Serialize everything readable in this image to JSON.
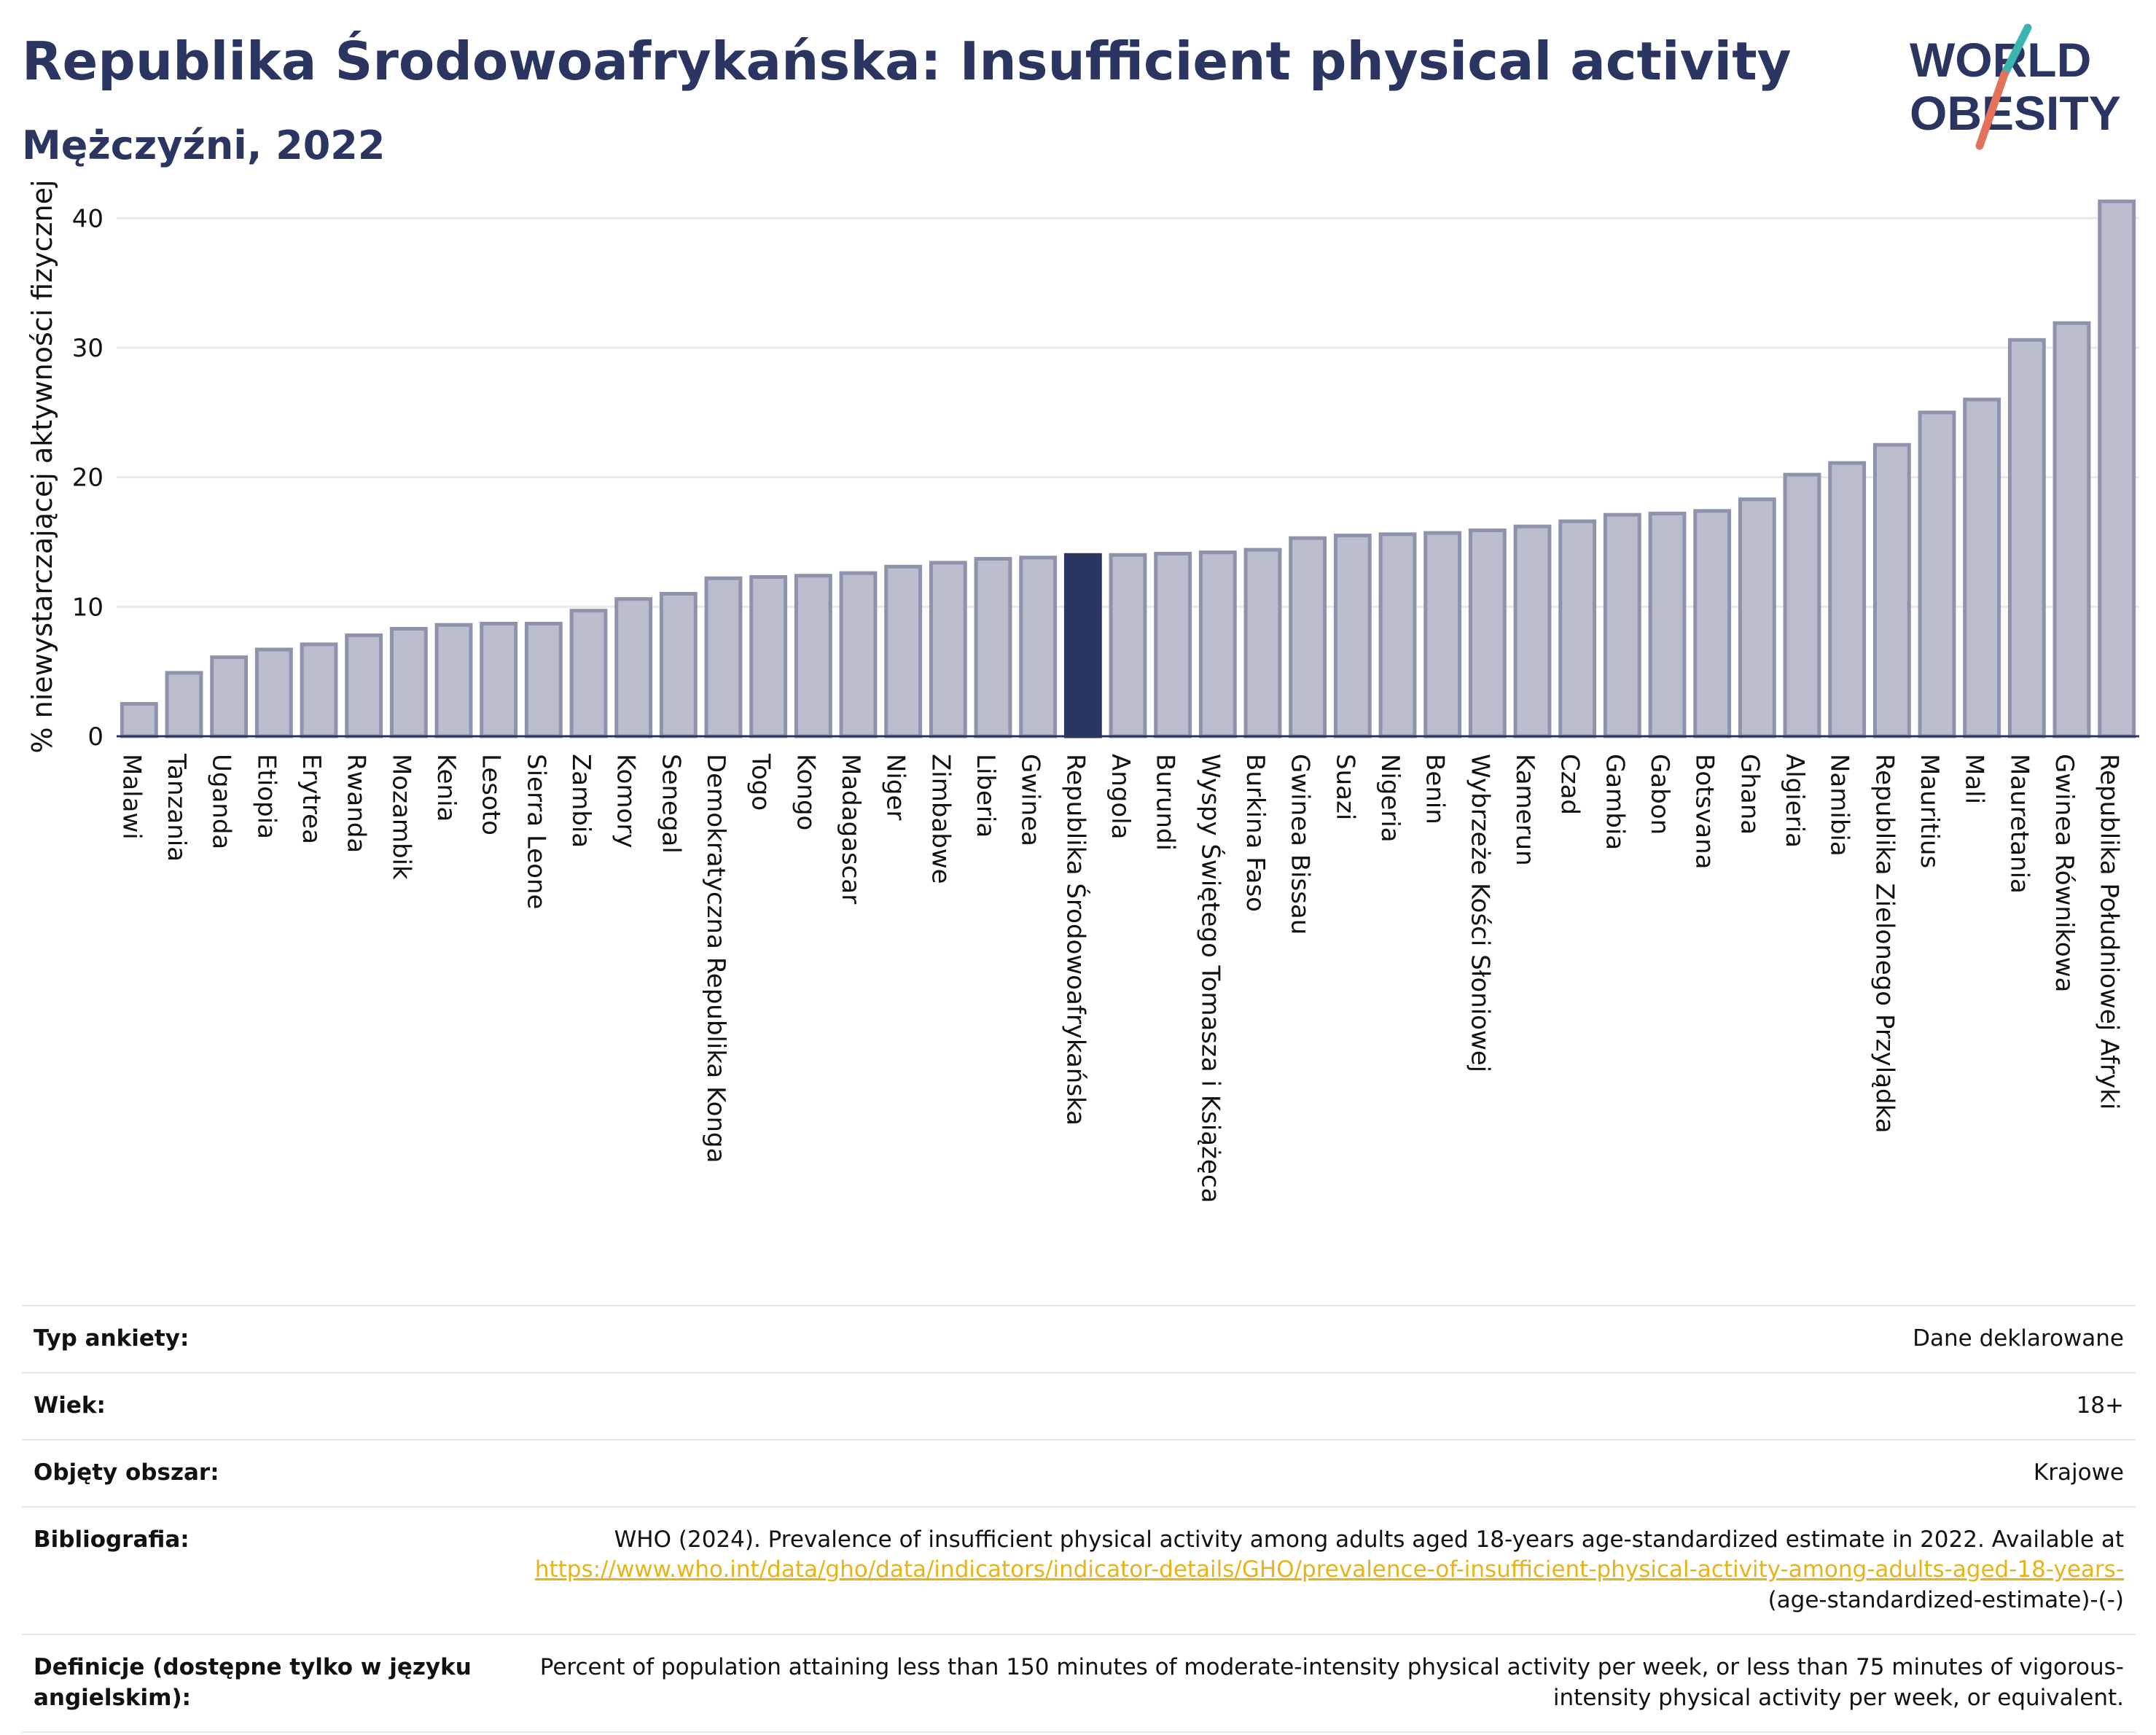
{
  "header": {
    "title": "Republika Środowoafrykańska: Insufficient physical activity",
    "subtitle": "Mężczyźni, 2022"
  },
  "logo": {
    "line1": "WORLD",
    "line2": "OBESITY",
    "accent_teal": "#3ab5b0",
    "accent_red": "#e2725b"
  },
  "colors": {
    "bar": "#b9bdcc",
    "bar_border": "#8d93ad",
    "highlight": "#2b3561",
    "grid": "#e8e9ed"
  },
  "chart_data": {
    "type": "bar",
    "title": "Republika Środowoafrykańska: Insufficient physical activity",
    "subtitle": "Mężczyźni, 2022",
    "xlabel": "",
    "ylabel": "% niewystarczającej aktywności fizycznej",
    "ylim": [
      0,
      43
    ],
    "yticks": [
      0,
      10,
      20,
      30,
      40
    ],
    "grid": true,
    "highlight": "Republika Środowoafrykańska",
    "categories": [
      "Malawi",
      "Tanzania",
      "Uganda",
      "Etiopia",
      "Erytrea",
      "Rwanda",
      "Mozambik",
      "Kenia",
      "Lesoto",
      "Sierra Leone",
      "Zambia",
      "Komory",
      "Senegal",
      "Demokratyczna Republika Konga",
      "Togo",
      "Kongo",
      "Madagascar",
      "Niger",
      "Zimbabwe",
      "Liberia",
      "Gwinea",
      "Republika Środowoafrykańska",
      "Angola",
      "Burundi",
      "Wyspy Świętego Tomasza i Książęca",
      "Burkina Faso",
      "Gwinea Bissau",
      "Suazi",
      "Nigeria",
      "Benin",
      "Wybrzeże Kości Słoniowej",
      "Kamerun",
      "Czad",
      "Gambia",
      "Gabon",
      "Botsvana",
      "Ghana",
      "Algieria",
      "Namibia",
      "Republika Zielonego Przylądka",
      "Mauritius",
      "Mali",
      "Mauretania",
      "Gwinea Równikowa",
      "Republika Południowej Afryki"
    ],
    "values": [
      2.5,
      4.9,
      6.1,
      6.7,
      7.1,
      7.8,
      8.3,
      8.6,
      8.7,
      8.7,
      9.7,
      10.6,
      11.0,
      12.2,
      12.3,
      12.4,
      12.6,
      13.1,
      13.4,
      13.7,
      13.8,
      14.0,
      14.0,
      14.1,
      14.2,
      14.4,
      15.3,
      15.5,
      15.6,
      15.7,
      15.9,
      16.2,
      16.6,
      17.1,
      17.2,
      17.4,
      18.3,
      20.2,
      21.1,
      22.5,
      25.0,
      26.0,
      30.6,
      31.9,
      41.3
    ]
  },
  "meta": {
    "survey_label": "Typ ankiety:",
    "survey_value": "Dane deklarowane",
    "age_label": "Wiek:",
    "age_value": "18+",
    "area_label": "Objęty obszar:",
    "area_value": "Krajowe",
    "biblio_label": "Bibliografia:",
    "biblio_text": "WHO (2024). Prevalence of insufficient physical activity among adults aged 18-years age-standardized estimate in 2022. Available at",
    "biblio_link": "https://www.who.int/data/gho/data/indicators/indicator-details/GHO/prevalence-of-insufficient-physical-activity-among-adults-aged-18-years-",
    "biblio_tail": "(age-standardized-estimate)-(-)",
    "def_label": "Definicje (dostępne tylko w języku angielskim):",
    "def_value": "Percent of population attaining less than 150 minutes of moderate-intensity physical activity per week, or less than 75 minutes of vigorous-intensity physical activity per week, or equivalent."
  }
}
